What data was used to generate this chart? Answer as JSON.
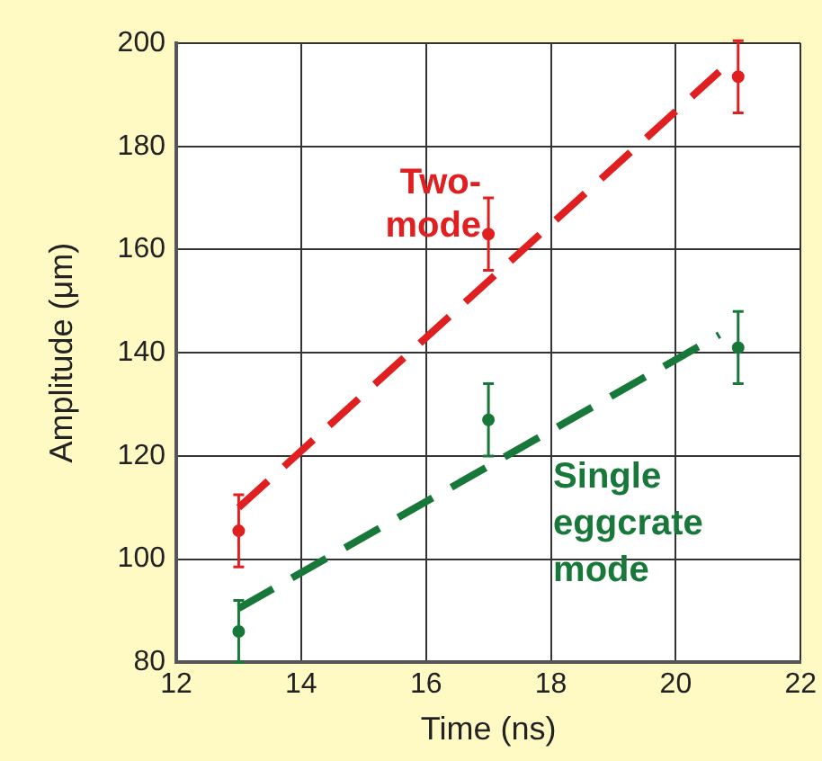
{
  "chart_data": {
    "type": "scatter",
    "xlabel": "Time (ns)",
    "ylabel": "Amplitude (μm)",
    "xlim": [
      12,
      22
    ],
    "xticks": [
      12,
      14,
      16,
      18,
      20,
      22
    ],
    "ylim": [
      80,
      200
    ],
    "yticks": [
      80,
      100,
      120,
      140,
      160,
      180,
      200
    ],
    "grid": true,
    "legend": false,
    "marker": "circle",
    "series": [
      {
        "name": "Two-\nmode",
        "color": "#e02020",
        "x": [
          13,
          17,
          21
        ],
        "values": [
          105.5,
          163,
          193.5
        ],
        "errors": [
          7,
          7,
          7
        ]
      },
      {
        "name": "Single\neggcrate\nmode",
        "color": "#18783a",
        "x": [
          13,
          17,
          21
        ],
        "values": [
          86,
          127,
          141
        ],
        "errors": [
          6,
          7,
          7
        ]
      },
      {
        "type": "line",
        "color": "#e02020",
        "x": [
          13,
          20.7
        ],
        "values": [
          110,
          194.5
        ],
        "line_style": "dashed",
        "marker": "none"
      },
      {
        "type": "line",
        "color": "#18783a",
        "x": [
          13,
          20.7
        ],
        "values": [
          90.5,
          143.5
        ],
        "line_style": "dashed",
        "marker": "none"
      }
    ]
  }
}
